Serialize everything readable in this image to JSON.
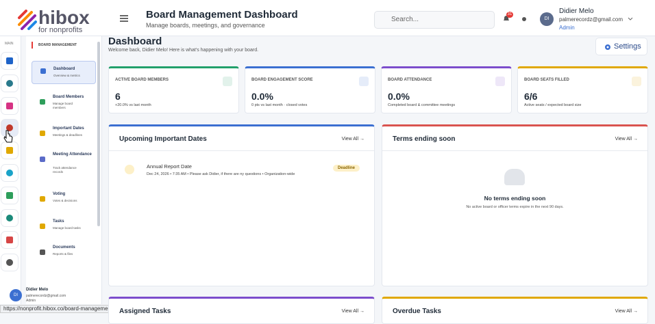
{
  "header": {
    "logo": "hibox",
    "logo_sub": "for nonprofits",
    "title": "Board Management Dashboard",
    "subtitle": "Manage boards, meetings, and governance",
    "search_placeholder": "Search...",
    "notifications": "31",
    "avatar": "DI",
    "user_name": "Didier Melo",
    "user_email": "palmerecordz@gmail.com",
    "user_role": "Admin"
  },
  "rail": {
    "label": "MAIN"
  },
  "sidebar": {
    "section": "BOARD MANAGEMENT",
    "items": [
      {
        "title": "Dashboard",
        "desc": "Overview & metrics"
      },
      {
        "title": "Board Members",
        "desc": "Manage board members"
      },
      {
        "title": "Important Dates",
        "desc": "Meetings & deadlines"
      },
      {
        "title": "Meeting Attendance",
        "desc": "Track attendance records"
      },
      {
        "title": "Voting",
        "desc": "Votes & decisions"
      },
      {
        "title": "Tasks",
        "desc": "Manage board tasks"
      },
      {
        "title": "Documents",
        "desc": "Reports & files"
      }
    ],
    "user": {
      "avatar": "DI",
      "name": "Didier Melo",
      "email": "palmerecordz@gmail.com",
      "role": "Admin"
    }
  },
  "page": {
    "title": "Dashboard",
    "welcome": "Welcome back, Didier Melo! Here is what's happening with your board.",
    "settings": "Settings"
  },
  "stats": [
    {
      "label": "ACTIVE BOARD MEMBERS",
      "value": "6",
      "note": "+20.0% vs last month"
    },
    {
      "label": "BOARD ENGAGEMENT SCORE",
      "value": "0.0%",
      "note": "0 pts vs last month · closed votes"
    },
    {
      "label": "BOARD ATTENDANCE",
      "value": "0.0%",
      "note": "Completed board & committee meetings"
    },
    {
      "label": "BOARD SEATS FILLED",
      "value": "6/6",
      "note": "Active seats / expected board size"
    }
  ],
  "panels": [
    {
      "title": "Upcoming Important Dates",
      "link": "View All →"
    },
    {
      "title": "Terms ending soon",
      "link": "View All →"
    },
    {
      "title": "Assigned Tasks",
      "link": "View All →"
    },
    {
      "title": "Overdue Tasks",
      "link": "View All →"
    }
  ],
  "event": {
    "title": "Annual Report Date",
    "details": "Dec 24, 2026 • 7:35 AM • Please ask Didier, if there are ny questions • Organization-wide",
    "badge": "Deadline"
  },
  "empty": {
    "title": "No terms ending soon",
    "text": "No active board or officer terms expire in the next 90 days."
  },
  "status_url": "https://nonprofit.hibox.co/board-management"
}
